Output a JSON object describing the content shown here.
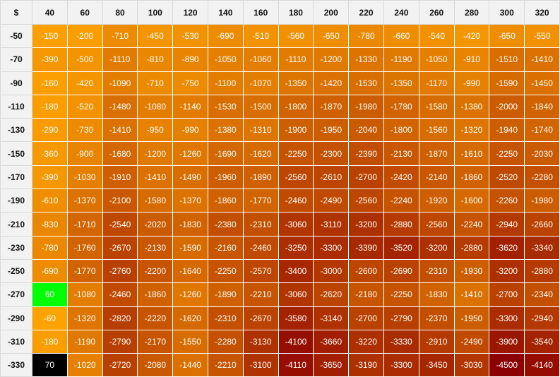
{
  "corner_label": "$",
  "columns": [
    "40",
    "60",
    "80",
    "100",
    "120",
    "140",
    "160",
    "180",
    "200",
    "220",
    "240",
    "260",
    "280",
    "300",
    "320"
  ],
  "colors": {
    "header_bg": "#f2f2f2",
    "light": "#ffa500",
    "dark": "#8b0000",
    "highlight_positive": "#00ff00",
    "highlight_max": "#000000"
  },
  "rows": [
    {
      "label": "-50",
      "values": [
        "-150",
        "-200",
        "-710",
        "-450",
        "-530",
        "-690",
        "-510",
        "-560",
        "-650",
        "-780",
        "-660",
        "-540",
        "-420",
        "-650",
        "-550"
      ]
    },
    {
      "label": "-70",
      "values": [
        "-390",
        "-500",
        "-1110",
        "-810",
        "-890",
        "-1050",
        "-1060",
        "-1110",
        "-1200",
        "-1330",
        "-1190",
        "-1050",
        "-910",
        "-1510",
        "-1410"
      ]
    },
    {
      "label": "-90",
      "values": [
        "-160",
        "-420",
        "-1090",
        "-710",
        "-750",
        "-1100",
        "-1070",
        "-1350",
        "-1420",
        "-1530",
        "-1350",
        "-1170",
        "-990",
        "-1590",
        "-1450"
      ]
    },
    {
      "label": "-110",
      "values": [
        "-180",
        "-520",
        "-1480",
        "-1080",
        "-1140",
        "-1530",
        "-1500",
        "-1800",
        "-1870",
        "-1980",
        "-1780",
        "-1580",
        "-1380",
        "-2000",
        "-1840"
      ]
    },
    {
      "label": "-130",
      "values": [
        "-290",
        "-730",
        "-1410",
        "-950",
        "-990",
        "-1380",
        "-1310",
        "-1900",
        "-1950",
        "-2040",
        "-1800",
        "-1560",
        "-1320",
        "-1940",
        "-1740"
      ]
    },
    {
      "label": "-150",
      "values": [
        "-360",
        "-900",
        "-1680",
        "-1200",
        "-1260",
        "-1690",
        "-1620",
        "-2250",
        "-2300",
        "-2390",
        "-2130",
        "-1870",
        "-1610",
        "-2250",
        "-2030"
      ]
    },
    {
      "label": "-170",
      "values": [
        "-390",
        "-1030",
        "-1910",
        "-1410",
        "-1490",
        "-1960",
        "-1890",
        "-2560",
        "-2610",
        "-2700",
        "-2420",
        "-2140",
        "-1860",
        "-2520",
        "-2280"
      ]
    },
    {
      "label": "-190",
      "values": [
        "-610",
        "-1370",
        "-2100",
        "-1580",
        "-1370",
        "-1860",
        "-1770",
        "-2460",
        "-2490",
        "-2560",
        "-2240",
        "-1920",
        "-1600",
        "-2260",
        "-1980"
      ]
    },
    {
      "label": "-210",
      "values": [
        "-830",
        "-1710",
        "-2540",
        "-2020",
        "-1830",
        "-2380",
        "-2310",
        "-3060",
        "-3110",
        "-3200",
        "-2880",
        "-2560",
        "-2240",
        "-2940",
        "-2660"
      ]
    },
    {
      "label": "-230",
      "values": [
        "-780",
        "-1760",
        "-2670",
        "-2130",
        "-1590",
        "-2160",
        "-2460",
        "-3250",
        "-3300",
        "-3390",
        "-3520",
        "-3200",
        "-2880",
        "-3620",
        "-3340"
      ]
    },
    {
      "label": "-250",
      "values": [
        "-690",
        "-1770",
        "-2760",
        "-2200",
        "-1640",
        "-2250",
        "-2570",
        "-3400",
        "-3000",
        "-2600",
        "-2690",
        "-2310",
        "-1930",
        "-3200",
        "-2880"
      ]
    },
    {
      "label": "-270",
      "values": [
        "60",
        "-1080",
        "-2460",
        "-1860",
        "-1260",
        "-1890",
        "-2210",
        "-3060",
        "-2620",
        "-2180",
        "-2250",
        "-1830",
        "-1410",
        "-2700",
        "-2340"
      ]
    },
    {
      "label": "-290",
      "values": [
        "-60",
        "-1320",
        "-2820",
        "-2220",
        "-1620",
        "-2310",
        "-2670",
        "-3580",
        "-3140",
        "-2700",
        "-2790",
        "-2370",
        "-1950",
        "-3300",
        "-2940"
      ]
    },
    {
      "label": "-310",
      "values": [
        "-180",
        "-1190",
        "-2790",
        "-2170",
        "-1550",
        "-2280",
        "-3130",
        "-4100",
        "-3660",
        "-3220",
        "-3330",
        "-2910",
        "-2490",
        "-3900",
        "-3540"
      ]
    },
    {
      "label": "-330",
      "values": [
        "70",
        "-1020",
        "-2720",
        "-2080",
        "-1440",
        "-2210",
        "-3100",
        "-4110",
        "-3650",
        "-3190",
        "-3300",
        "-3450",
        "-3030",
        "-4500",
        "-4140"
      ]
    }
  ]
}
